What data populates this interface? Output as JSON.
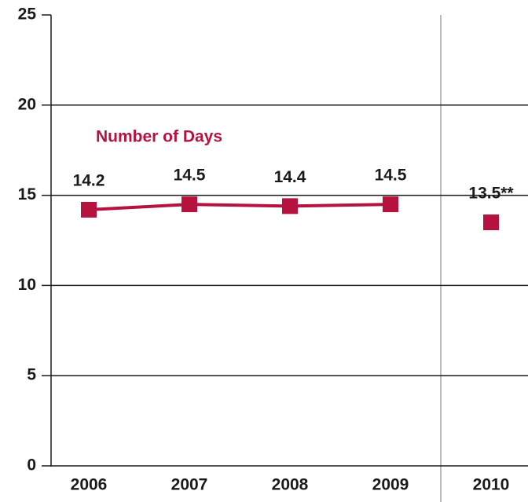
{
  "chart_data": {
    "type": "line",
    "categories": [
      "2006",
      "2007",
      "2008",
      "2009",
      "2010"
    ],
    "series": [
      {
        "name": "Number of Days",
        "color": "#b5123f",
        "values": [
          14.2,
          14.5,
          14.4,
          14.5,
          null
        ],
        "value_labels": [
          "14.2",
          "14.5",
          "14.4",
          "14.5",
          null
        ]
      },
      {
        "color": "#b5123f",
        "values": [
          null,
          null,
          null,
          null,
          13.5
        ],
        "value_labels": [
          null,
          null,
          null,
          null,
          "13.5**"
        ]
      }
    ],
    "ylim": [
      0,
      25
    ],
    "yticks": [
      0,
      5,
      10,
      15,
      20,
      25
    ],
    "grid": true
  }
}
